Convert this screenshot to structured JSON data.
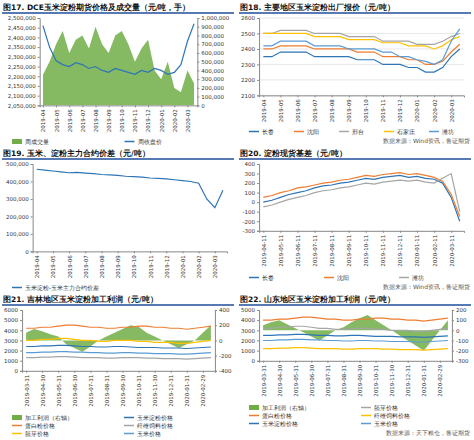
{
  "chart_data": [
    {
      "type": "line",
      "title": "图17. DCE玉米淀粉期货价格及成交量（元/吨，手）",
      "legend": "bottom",
      "grid": false,
      "categories": [
        "2019-04",
        null,
        "2019-05",
        null,
        "2019-06",
        null,
        "2019-07",
        null,
        "2019-08",
        null,
        "2019-09",
        null,
        "2019-10",
        null,
        "2019-11",
        null,
        "2019-12",
        null,
        "2020-01",
        null,
        "2020-02",
        null,
        "2020-03",
        null
      ],
      "ylim": [
        2050000,
        2500000
      ],
      "yticks": [
        {
          "value": 2050000,
          "label": "2,050,000"
        },
        {
          "value": 2100000,
          "label": "2,100,000"
        },
        {
          "value": 2150000,
          "label": "2,150,000"
        },
        {
          "value": 2200000,
          "label": "2,200,000"
        },
        {
          "value": 2250000,
          "label": "2,250,000"
        },
        {
          "value": 2300000,
          "label": "2,300,000"
        },
        {
          "value": 2350000,
          "label": "2,350,000"
        },
        {
          "value": 2400000,
          "label": "2,400,000"
        },
        {
          "value": 2450000,
          "label": "2,450,000"
        },
        {
          "value": 2500000,
          "label": "2,500,000"
        }
      ],
      "y2lim": [
        0,
        1000000
      ],
      "y2ticks": [
        0,
        {
          "value": 100000,
          "label": "100,000"
        },
        {
          "value": 200000,
          "label": "200,000"
        },
        {
          "value": 300000,
          "label": "300,000"
        },
        {
          "value": 400000,
          "label": "400,000"
        },
        {
          "value": 500000,
          "label": "500,000"
        },
        {
          "value": 600000,
          "label": "600,000"
        },
        {
          "value": 700000,
          "label": "700,000"
        },
        {
          "value": 800000,
          "label": "800,000"
        },
        {
          "value": 900000,
          "label": "900,000"
        },
        {
          "value": 1000000,
          "label": "1,000,000"
        }
      ],
      "series": [
        {
          "name": "周成交量",
          "type": "area",
          "axis": "y2",
          "color": "#70ad47",
          "values": [
            350000,
            500000,
            700000,
            850000,
            600000,
            750000,
            800000,
            650000,
            900000,
            700000,
            600000,
            800000,
            850000,
            700000,
            500000,
            650000,
            750000,
            400000,
            300000,
            500000,
            200000,
            150000,
            400000,
            250000
          ]
        },
        {
          "name": "周收盘价",
          "type": "line",
          "color": "#2e75b6",
          "values": [
            2460000,
            2350000,
            2280000,
            2260000,
            2250000,
            2270000,
            2260000,
            2240000,
            2250000,
            2230000,
            2220000,
            2240000,
            2230000,
            2220000,
            2210000,
            2230000,
            2220000,
            2240000,
            2230000,
            2210000,
            2220000,
            2260000,
            2380000,
            2470000
          ]
        }
      ]
    },
    {
      "type": "line",
      "title": "图18. 主要地区玉米淀粉出厂报价（元/吨）",
      "legend": "bottom",
      "grid": true,
      "source": "数据来源：Wind资讯，鲁证期货",
      "categories": [
        "2019-04",
        null,
        "2019-05",
        null,
        "2019-06",
        null,
        "2019-07",
        null,
        "2019-08",
        null,
        "2019-09",
        null,
        "2019-10",
        null,
        "2019-11",
        null,
        "2019-12",
        null,
        "2020-01",
        null,
        "2020-02",
        null,
        "2020-03",
        null
      ],
      "ylim": [
        2100,
        2600
      ],
      "yticks": [
        2100,
        2200,
        2300,
        2400,
        2500,
        2600
      ],
      "series": [
        {
          "name": "长春",
          "color": "#2e75b6",
          "values": [
            2350,
            2350,
            2380,
            2380,
            2380,
            2380,
            2350,
            2350,
            2350,
            2350,
            2350,
            2330,
            2330,
            2330,
            2300,
            2300,
            2300,
            2280,
            2280,
            2250,
            2250,
            2280,
            2350,
            2400
          ]
        },
        {
          "name": "沈阳",
          "color": "#ed7d31",
          "values": [
            2400,
            2400,
            2420,
            2420,
            2420,
            2420,
            2400,
            2400,
            2400,
            2400,
            2400,
            2380,
            2380,
            2380,
            2350,
            2350,
            2350,
            2330,
            2330,
            2300,
            2300,
            2320,
            2380,
            2430
          ]
        },
        {
          "name": "邢台",
          "color": "#a5a5a5",
          "values": [
            2500,
            2500,
            2520,
            2520,
            2520,
            2520,
            2500,
            2500,
            2500,
            2500,
            2480,
            2480,
            2480,
            2480,
            2450,
            2450,
            2450,
            2450,
            2430,
            2430,
            2430,
            2450,
            2480,
            2500
          ]
        },
        {
          "name": "石家庄",
          "color": "#ffc000",
          "values": [
            2500,
            2500,
            2500,
            2500,
            2500,
            2500,
            2480,
            2480,
            2480,
            2480,
            2460,
            2460,
            2460,
            2460,
            2440,
            2440,
            2440,
            2420,
            2420,
            2420,
            2400,
            2420,
            2460,
            2480
          ]
        },
        {
          "name": "潍坊",
          "color": "#5b9bd5",
          "values": [
            2420,
            2420,
            2450,
            2450,
            2450,
            2450,
            2420,
            2420,
            2420,
            2420,
            2400,
            2400,
            2400,
            2400,
            2380,
            2380,
            2350,
            2350,
            2330,
            2320,
            2300,
            2330,
            2450,
            2530
          ]
        }
      ]
    },
    {
      "type": "line",
      "title": "图19. 玉米、淀粉主力合约价差（元/吨）",
      "legend": "bottom",
      "grid": false,
      "categories": [
        "2019-04",
        null,
        "2019-05",
        null,
        "2019-06",
        null,
        "2019-07",
        null,
        "2019-08",
        null,
        "2019-09",
        null,
        "2019-10",
        null,
        "2019-11",
        null,
        "2019-12",
        null,
        "2020-01",
        null,
        "2020-02",
        null,
        "2020-03",
        null
      ],
      "ylim": [
        0,
        500000
      ],
      "yticks": [
        0,
        {
          "value": 100000,
          "label": "100,000"
        },
        {
          "value": 200000,
          "label": "200,000"
        },
        {
          "value": 300000,
          "label": "300,000"
        },
        {
          "value": 400000,
          "label": "400,000"
        },
        {
          "value": 500000,
          "label": "500,000"
        }
      ],
      "series": [
        {
          "name": "玉米淀粉-玉米主力合约价差",
          "color": "#2e75b6",
          "values": [
            470000,
            465000,
            460000,
            455000,
            450000,
            452000,
            448000,
            445000,
            440000,
            438000,
            435000,
            430000,
            428000,
            425000,
            420000,
            418000,
            415000,
            410000,
            405000,
            400000,
            390000,
            300000,
            250000,
            350000
          ]
        }
      ]
    },
    {
      "type": "line",
      "title": "图20. 淀粉现货基差（元/吨）",
      "legend": "bottom",
      "grid": false,
      "source": "数据来源：Wind资讯，鲁证期货",
      "categories": [
        "2019-04-11",
        null,
        "2019-05-11",
        null,
        "2019-06-11",
        null,
        "2019-07-11",
        null,
        "2019-08-11",
        null,
        "2019-09-11",
        null,
        "2019-10-11",
        null,
        "2019-11-11",
        null,
        "2019-12-11",
        null,
        "2020-01-11",
        null,
        "2020-02-11",
        null,
        "2020-03-11",
        null
      ],
      "ylim": [
        -300,
        400
      ],
      "yticks": [
        -300,
        -200,
        -100,
        0,
        100,
        200,
        300,
        400
      ],
      "series": [
        {
          "name": "长春",
          "color": "#2e75b6",
          "values": [
            0,
            20,
            50,
            80,
            100,
            120,
            150,
            170,
            180,
            200,
            210,
            230,
            250,
            240,
            260,
            270,
            280,
            260,
            270,
            250,
            240,
            200,
            50,
            -200
          ]
        },
        {
          "name": "沈阳",
          "color": "#ed7d31",
          "values": [
            50,
            70,
            100,
            120,
            150,
            160,
            180,
            200,
            210,
            230,
            240,
            260,
            280,
            270,
            290,
            300,
            310,
            290,
            300,
            280,
            260,
            220,
            80,
            -150
          ]
        },
        {
          "name": "潍坊",
          "color": "#a5a5a5",
          "values": [
            -50,
            -30,
            0,
            30,
            50,
            70,
            100,
            120,
            130,
            150,
            160,
            180,
            200,
            190,
            210,
            220,
            230,
            220,
            230,
            210,
            200,
            250,
            300,
            -100
          ]
        }
      ]
    },
    {
      "type": "line",
      "title": "图21. 吉林地区玉米淀粉加工利润（元/吨）",
      "legend": "bottom",
      "grid": false,
      "categories": [
        "2019-03-31",
        null,
        "2019-04-30",
        null,
        "2019-05-31",
        null,
        "2019-06-30",
        null,
        "2019-07-31",
        null,
        "2019-08-31",
        null,
        "2019-09-30",
        null,
        "2019-10-31",
        null,
        "2019-11-30",
        null,
        "2019-12-31",
        null,
        "2020-01-31",
        null,
        "2020-02-29",
        null
      ],
      "ylim": [
        0,
        6000
      ],
      "yticks": [
        0,
        1000,
        2000,
        3000,
        4000,
        5000,
        6000
      ],
      "y2lim": [
        -400,
        400
      ],
      "y2ticks": [
        -400,
        -200,
        0,
        200,
        400
      ],
      "series": [
        {
          "name": "加工利润（右轴）",
          "type": "area",
          "axis": "y2",
          "color": "#70ad47",
          "values": [
            100,
            150,
            120,
            80,
            50,
            -50,
            -100,
            -150,
            -80,
            0,
            50,
            100,
            150,
            200,
            180,
            100,
            50,
            0,
            -50,
            -100,
            -50,
            0,
            100,
            200
          ]
        },
        {
          "name": "玉米淀粉价格",
          "type": "line",
          "color": "#2e75b6",
          "values": [
            2400,
            2400,
            2450,
            2450,
            2500,
            2500,
            2450,
            2400,
            2400,
            2350,
            2350,
            2400,
            2400,
            2350,
            2300,
            2300,
            2300,
            2250,
            2250,
            2250,
            2200,
            2250,
            2300,
            2350
          ]
        },
        {
          "name": "蛋白粉价格",
          "type": "line",
          "color": "#ed7d31",
          "values": [
            4200,
            4200,
            4300,
            4300,
            4400,
            4500,
            4500,
            4400,
            4300,
            4300,
            4200,
            4200,
            4300,
            4300,
            4400,
            4400,
            4300,
            4300,
            4200,
            4200,
            4100,
            4200,
            4300,
            4400
          ]
        },
        {
          "name": "纤维饲料价格",
          "type": "line",
          "color": "#a5a5a5",
          "values": [
            1300,
            1300,
            1350,
            1350,
            1400,
            1400,
            1350,
            1300,
            1300,
            1300,
            1250,
            1250,
            1300,
            1300,
            1300,
            1250,
            1250,
            1200,
            1200,
            1200,
            1150,
            1200,
            1250,
            1300
          ]
        },
        {
          "name": "胚芽价格",
          "type": "line",
          "color": "#ffc000",
          "values": [
            3000,
            3000,
            3100,
            3100,
            3200,
            3200,
            3100,
            3000,
            3000,
            2900,
            2900,
            3000,
            3000,
            3000,
            2900,
            2900,
            2800,
            2800,
            2800,
            2700,
            2700,
            2800,
            2900,
            3000
          ]
        },
        {
          "name": "玉米价格",
          "type": "line",
          "color": "#5b9bd5",
          "values": [
            1800,
            1800,
            1850,
            1850,
            1900,
            1900,
            1850,
            1850,
            1800,
            1800,
            1750,
            1750,
            1800,
            1800,
            1750,
            1750,
            1700,
            1700,
            1700,
            1650,
            1650,
            1700,
            1750,
            1800
          ]
        }
      ]
    },
    {
      "type": "line",
      "title": "图22. 山东地区玉米淀粉加工利润（元/吨）",
      "legend": "bottom",
      "grid": false,
      "source": "数据来源：天下粮仓，鲁证期货",
      "categories": [
        "2019-03-31",
        null,
        "2019-04-30",
        null,
        "2019-05-31",
        null,
        "2019-06-30",
        null,
        "2019-07-31",
        null,
        "2019-08-31",
        null,
        "2019-09-30",
        null,
        "2019-10-31",
        null,
        "2019-11-30",
        null,
        "2019-12-31",
        null,
        "2020-01-31",
        null,
        "2020-02-29",
        null
      ],
      "ylim": [
        0,
        5000
      ],
      "yticks": [
        0,
        1000,
        2000,
        3000,
        4000,
        5000
      ],
      "y2lim": [
        -300,
        200
      ],
      "y2ticks": [
        -300,
        -200,
        -100,
        0,
        100,
        200
      ],
      "series": [
        {
          "name": "加工利润（右轴）",
          "type": "area",
          "axis": "y2",
          "color": "#70ad47",
          "values": [
            50,
            80,
            100,
            60,
            20,
            -20,
            -60,
            -100,
            -50,
            0,
            30,
            80,
            120,
            150,
            100,
            50,
            0,
            -50,
            -100,
            -150,
            -200,
            -100,
            0,
            100
          ]
        },
        {
          "name": "胚芽价格",
          "type": "line",
          "color": "#a5a5a5",
          "values": [
            3200,
            3200,
            3300,
            3300,
            3400,
            3400,
            3300,
            3200,
            3200,
            3100,
            3100,
            3200,
            3200,
            3200,
            3100,
            3100,
            3000,
            3000,
            3000,
            2900,
            2900,
            3000,
            3100,
            3200
          ]
        },
        {
          "name": "蛋白粉价格",
          "type": "line",
          "color": "#ed7d31",
          "values": [
            4000,
            4000,
            4100,
            4100,
            4200,
            4300,
            4300,
            4200,
            4100,
            4100,
            4000,
            4000,
            4100,
            4100,
            4200,
            4200,
            4100,
            4100,
            4000,
            4000,
            3900,
            4000,
            4100,
            4200
          ]
        },
        {
          "name": "纤维饲料价格",
          "type": "line",
          "color": "#ffc000",
          "values": [
            1200,
            1200,
            1250,
            1250,
            1300,
            1300,
            1250,
            1200,
            1200,
            1200,
            1150,
            1150,
            1200,
            1200,
            1200,
            1150,
            1150,
            1100,
            1100,
            1100,
            1050,
            1100,
            1150,
            1200
          ]
        },
        {
          "name": "玉米淀粉价格",
          "type": "line",
          "color": "#2e75b6",
          "values": [
            2500,
            2500,
            2550,
            2550,
            2600,
            2600,
            2550,
            2500,
            2500,
            2450,
            2450,
            2500,
            2500,
            2450,
            2400,
            2400,
            2400,
            2350,
            2350,
            2350,
            2300,
            2350,
            2400,
            2450
          ]
        },
        {
          "name": "玉米价格",
          "type": "line",
          "color": "#5b9bd5",
          "values": [
            2000,
            2000,
            2050,
            2050,
            2100,
            2100,
            2050,
            2050,
            2000,
            2000,
            1950,
            1950,
            2000,
            2000,
            1950,
            1950,
            1900,
            1900,
            1900,
            1850,
            1850,
            1900,
            1950,
            2000
          ]
        }
      ]
    }
  ]
}
